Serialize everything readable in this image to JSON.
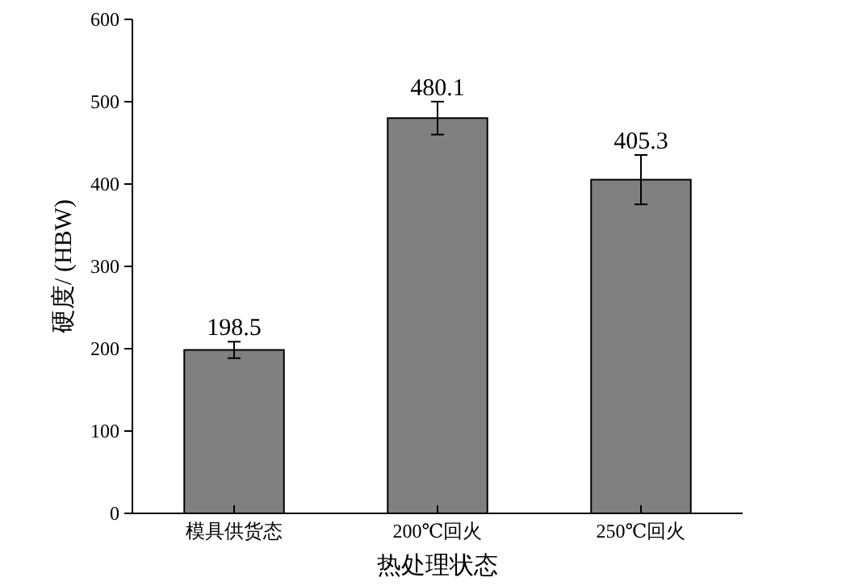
{
  "chart_data": {
    "type": "bar",
    "xlabel": "热处理状态",
    "ylabel": "硬度/ (HBW)",
    "categories": [
      "模具供货态",
      "200℃回火",
      "250℃回火"
    ],
    "values": [
      198.5,
      480.1,
      405.3
    ],
    "errors": [
      10,
      20,
      30
    ],
    "color": "#808080",
    "data_labels": true,
    "ylim": [
      0,
      600
    ],
    "yticks": [
      0,
      100,
      200,
      300,
      400,
      500,
      600
    ],
    "grid": false
  }
}
